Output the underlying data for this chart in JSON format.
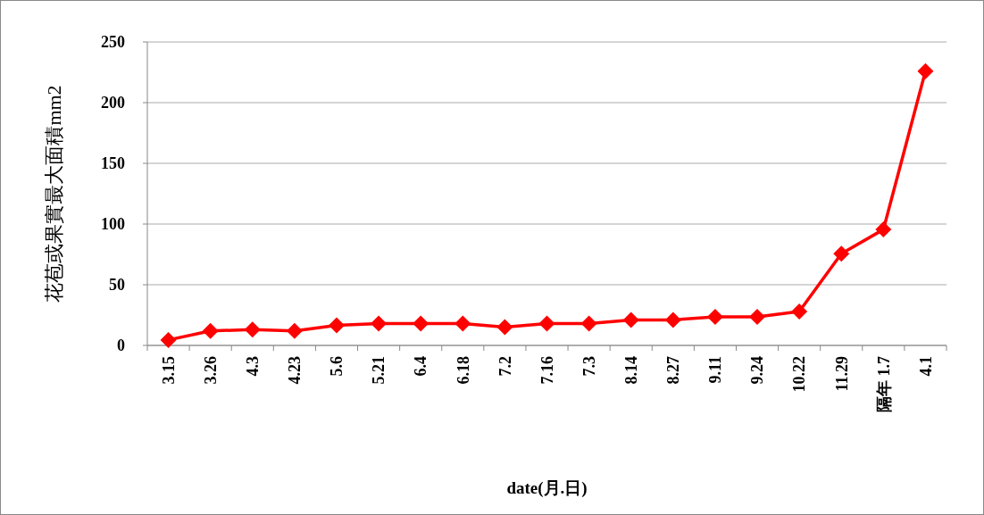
{
  "chart_data": {
    "type": "line",
    "xlabel": "date(月.日)",
    "ylabel": "花苞或果實最大面積mm2",
    "categories": [
      "3.15",
      "3.26",
      "4.3",
      "4.23",
      "5.6",
      "5.21",
      "6.4",
      "6.18",
      "7.2",
      "7.16",
      "7.3",
      "8.14",
      "8.27",
      "9.11",
      "9.24",
      "10.22",
      "11.29",
      "隔年 1.7",
      "4.1"
    ],
    "series": [
      {
        "color": "#ff0000",
        "values": [
          4.5,
          12,
          13,
          12,
          16.5,
          18,
          18,
          18,
          15,
          18,
          18,
          21,
          21,
          23.5,
          23.5,
          28,
          75.5,
          95.5,
          226
        ]
      }
    ],
    "ylim": [
      0,
      250
    ],
    "yticks": [
      0,
      50,
      100,
      150,
      200,
      250
    ],
    "grid": "y",
    "marker": "diamond",
    "line_style": "solid"
  }
}
